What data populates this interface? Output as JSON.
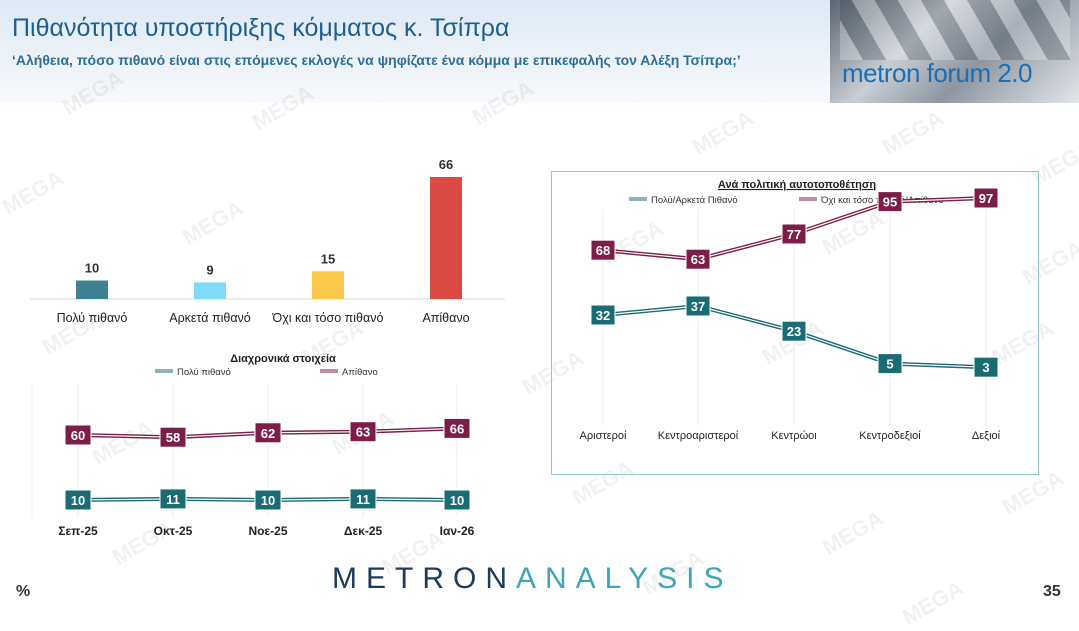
{
  "header": {
    "title": "Πιθανότητα υποστήριξης κόμματος κ. Τσίπρα",
    "subtitle": "‘Αλήθεια, πόσο πιθανό είναι στις επόμενες εκλογές να ψηφίζατε ένα κόμμα με επικεφαλής τον Αλέξη Τσίπρα;’",
    "logo": "metron forum 2.0"
  },
  "watermark": "MEGA",
  "footer": {
    "brand_part1": "METRON",
    "brand_part2": "ANALYSIS",
    "percent_sign": "%",
    "page_number": "35"
  },
  "chart_data": [
    {
      "type": "bar",
      "title": "",
      "categories": [
        "Πολύ πιθανό",
        "Αρκετά πιθανό",
        "Όχι και τόσο πιθανό",
        "Απίθανο"
      ],
      "values": [
        10,
        9,
        15,
        66
      ],
      "colors": [
        "#3f8192",
        "#7fdcf8",
        "#fac84b",
        "#d94a43"
      ],
      "ylim": [
        0,
        66
      ]
    },
    {
      "type": "line",
      "title": "Διαχρονικά στοιχεία",
      "categories": [
        "Σεπ-25",
        "Οκτ-25",
        "Νοε-25",
        "Δεκ-25",
        "Ιαν-26"
      ],
      "series": [
        {
          "name": "Πολύ πιθανό",
          "values": [
            10,
            11,
            10,
            11,
            10
          ],
          "color": "#1a6b73"
        },
        {
          "name": "Απίθανο",
          "values": [
            60,
            58,
            62,
            63,
            66
          ],
          "color": "#7d1d4a"
        }
      ],
      "grid": true,
      "legend": "top"
    },
    {
      "type": "line",
      "title": "Ανά πολιτική αυτοτοποθέτηση",
      "categories": [
        "Αριστεροί",
        "Κεντροαριστεροί",
        "Κεντρώοι",
        "Κεντροδεξιοί",
        "Δεξιοί"
      ],
      "series": [
        {
          "name": "Πολύ/Αρκετά Πιθανό",
          "values": [
            32,
            37,
            23,
            5,
            3
          ],
          "color": "#1a6b73"
        },
        {
          "name": "Όχι και τόσο πιθανό/Απίθανο",
          "values": [
            68,
            63,
            77,
            95,
            97
          ],
          "color": "#7d1d4a"
        }
      ],
      "grid": true,
      "legend": "top"
    }
  ]
}
